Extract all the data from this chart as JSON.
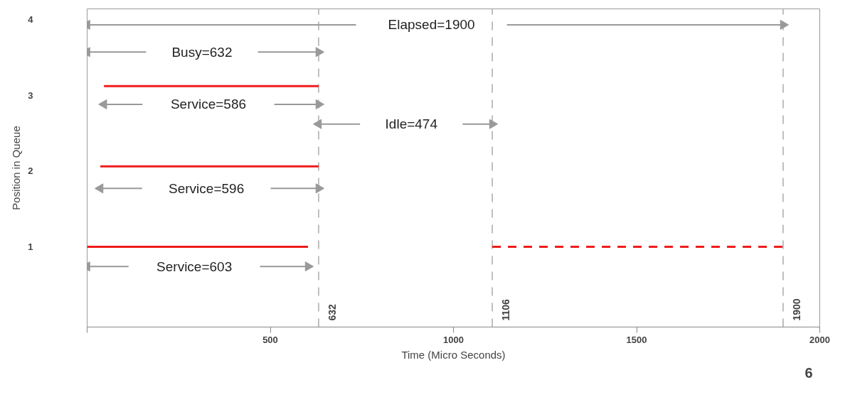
{
  "chart_data": {
    "type": "line",
    "xlabel": "Time (Micro Seconds)",
    "ylabel": "Position in Queue",
    "xlim": [
      0,
      2000
    ],
    "ylim": [
      -0.06,
      4.14
    ],
    "xticks": [
      {
        "value": 0,
        "label": null
      },
      500,
      1000,
      1500,
      2000
    ],
    "yticks": [
      1,
      2,
      3,
      4
    ],
    "grid": false,
    "series": [
      {
        "color": "#f01c1c",
        "x": [
          46,
          632
        ],
        "values": [
          3.12,
          3.12
        ]
      },
      {
        "color": "#f01c1c",
        "x": [
          36,
          632
        ],
        "values": [
          2.06,
          2.06
        ]
      },
      {
        "color": "#f01c1c",
        "x": [
          0,
          603
        ],
        "values": [
          1,
          1
        ]
      },
      {
        "color": "#f01c1c",
        "x": [
          1106,
          1900
        ],
        "values": [
          1,
          1
        ],
        "line_style": "dashed"
      },
      {
        "color": "#999999",
        "marker": "triangle",
        "x": [
          0,
          734,
          800,
          1146,
          1900
        ],
        "values": [
          3.93,
          3.93,
          null,
          3.93,
          3.93
        ]
      },
      {
        "color": "#999999",
        "marker": "triangle",
        "x": [
          0,
          161,
          300,
          466,
          632
        ],
        "values": [
          3.57,
          3.57,
          null,
          3.57,
          3.57
        ]
      },
      {
        "color": "#999999",
        "marker": "triangle",
        "x": [
          46,
          151,
          300,
          511,
          632
        ],
        "values": [
          2.88,
          2.88,
          null,
          2.88,
          2.88
        ]
      },
      {
        "color": "#999999",
        "marker": "triangle",
        "x": [
          632,
          745,
          900,
          1025,
          1106
        ],
        "values": [
          2.62,
          2.62,
          null,
          2.62,
          2.62
        ]
      },
      {
        "color": "#999999",
        "marker": "triangle",
        "x": [
          36,
          150,
          300,
          501,
          632
        ],
        "values": [
          1.77,
          1.77,
          null,
          1.77,
          1.77
        ]
      },
      {
        "color": "#999999",
        "marker": "triangle",
        "x": [
          0,
          113,
          300,
          472,
          603
        ],
        "values": [
          0.74,
          0.74,
          null,
          0.74,
          0.74
        ]
      }
    ],
    "ref_lines": [
      {
        "axis": "x",
        "value": 632,
        "label": "632",
        "color": "#aaaaaa",
        "line_style": "dashed"
      },
      {
        "axis": "x",
        "value": 1106,
        "label": "1106",
        "color": "#aaaaaa",
        "line_style": "dashed"
      },
      {
        "axis": "x",
        "value": 1900,
        "label": "1900",
        "color": "#aaaaaa",
        "line_style": "dashed"
      }
    ],
    "annotations": [
      "Elapsed=1900",
      "Busy=632",
      "Service=586",
      "Idle=474",
      "Service=596",
      "Service=603",
      "6"
    ]
  }
}
